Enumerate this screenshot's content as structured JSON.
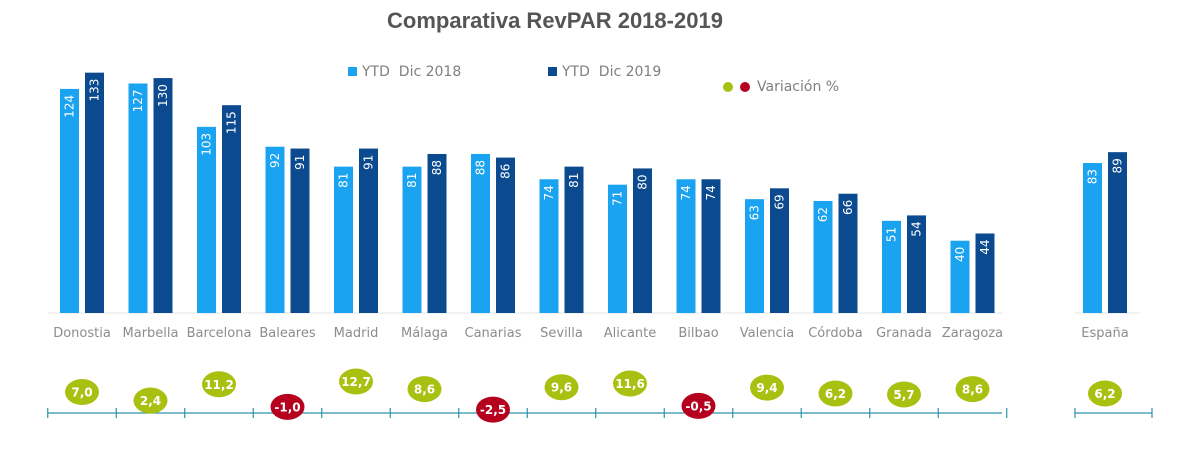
{
  "chart_data": {
    "type": "bar",
    "title": "Comparativa RevPAR 2018-2019",
    "categories": [
      "Donostia",
      "Marbella",
      "Barcelona",
      "Baleares",
      "Madrid",
      "Málaga",
      "Canarias",
      "Sevilla",
      "Alicante",
      "Bilbao",
      "Valencia",
      "Córdoba",
      "Granada",
      "Zaragoza",
      "España"
    ],
    "series": [
      {
        "name": "YTD  Dic 2018",
        "color": "#1aa3f0",
        "values": [
          124,
          127,
          103,
          92,
          81,
          81,
          88,
          74,
          71,
          74,
          63,
          62,
          51,
          40,
          83
        ]
      },
      {
        "name": "YTD  Dic 2019",
        "color": "#0b4a8e",
        "values": [
          133,
          130,
          115,
          91,
          91,
          88,
          86,
          81,
          80,
          74,
          69,
          66,
          54,
          44,
          89
        ]
      }
    ],
    "value_labels_2018": [
      "124",
      "127",
      "103",
      "92",
      "81",
      "81",
      "88",
      "74",
      "71",
      "74",
      "63",
      "62",
      "51",
      "40",
      "83"
    ],
    "value_labels_2019": [
      "133",
      "130",
      "115",
      "91",
      "91",
      "88",
      "86",
      "81",
      "80",
      "74",
      "69",
      "66",
      "54",
      "44",
      "89"
    ],
    "variation": {
      "legend": "Variación %",
      "values": [
        7.0,
        2.4,
        11.2,
        -1.0,
        12.7,
        8.6,
        -2.5,
        9.6,
        11.6,
        -0.5,
        9.4,
        6.2,
        5.7,
        8.6,
        6.2
      ],
      "labels": [
        "7,0",
        "2,4",
        "11,2",
        "-1,0",
        "12,7",
        "8,6",
        "-2,5",
        "9,6",
        "11,6",
        "-0,5",
        "9,4",
        "6,2",
        "5,7",
        "8,6",
        "6,2"
      ],
      "positive_color": "#a8c010",
      "negative_color": "#b5001e"
    },
    "ylim": [
      0,
      140
    ],
    "grid": false,
    "legend_position": "top"
  }
}
